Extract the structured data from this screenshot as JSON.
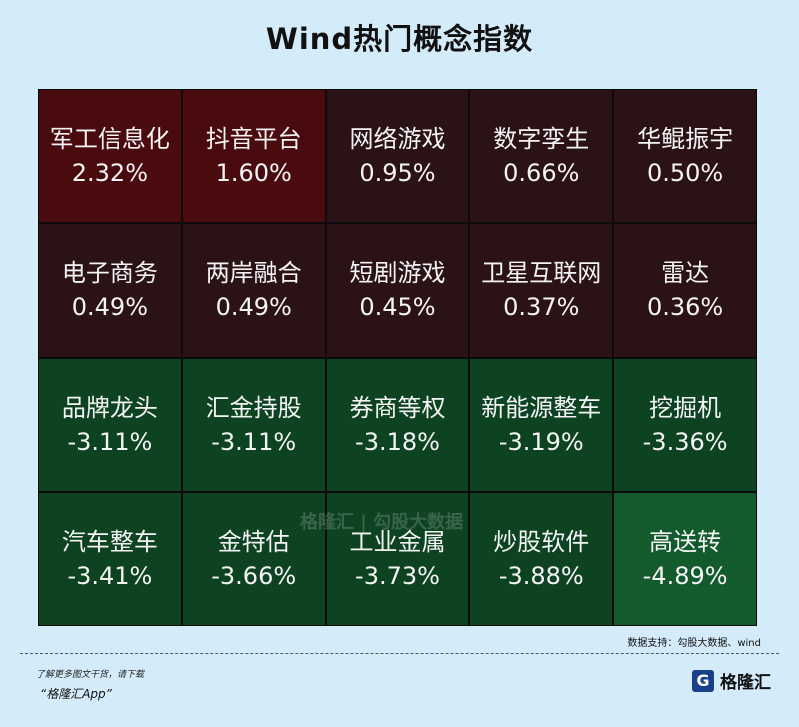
{
  "title": "Wind热门概念指数",
  "source": "数据支持：勾股大数据、wind",
  "footer": {
    "note": "了解更多图文干货，请下载",
    "app": "“格隆汇App”",
    "logo_text": "格隆汇",
    "logo_mark": "G"
  },
  "watermark": "格隆汇 | 勾股大数据",
  "colors": {
    "red_strong": "#4a0b0f",
    "red_weak": "#2a1217",
    "green_weak": "#0d4321",
    "green_strong": "#135a2c"
  },
  "chart_data": {
    "type": "heatmap",
    "unit": "%",
    "cells": [
      {
        "name": "军工信息化",
        "value": 2.32,
        "label": "2.32%"
      },
      {
        "name": "抖音平台",
        "value": 1.6,
        "label": "1.60%"
      },
      {
        "name": "网络游戏",
        "value": 0.95,
        "label": "0.95%"
      },
      {
        "name": "数字孪生",
        "value": 0.66,
        "label": "0.66%"
      },
      {
        "name": "华鲲振宇",
        "value": 0.5,
        "label": "0.50%"
      },
      {
        "name": "电子商务",
        "value": 0.49,
        "label": "0.49%"
      },
      {
        "name": "两岸融合",
        "value": 0.49,
        "label": "0.49%"
      },
      {
        "name": "短剧游戏",
        "value": 0.45,
        "label": "0.45%"
      },
      {
        "name": "卫星互联网",
        "value": 0.37,
        "label": "0.37%"
      },
      {
        "name": "雷达",
        "value": 0.36,
        "label": "0.36%"
      },
      {
        "name": "品牌龙头",
        "value": -3.11,
        "label": "-3.11%"
      },
      {
        "name": "汇金持股",
        "value": -3.11,
        "label": "-3.11%"
      },
      {
        "name": "券商等权",
        "value": -3.18,
        "label": "-3.18%"
      },
      {
        "name": "新能源整车",
        "value": -3.19,
        "label": "-3.19%"
      },
      {
        "name": "挖掘机",
        "value": -3.36,
        "label": "-3.36%"
      },
      {
        "name": "汽车整车",
        "value": -3.41,
        "label": "-3.41%"
      },
      {
        "name": "金特估",
        "value": -3.66,
        "label": "-3.66%"
      },
      {
        "name": "工业金属",
        "value": -3.73,
        "label": "-3.73%"
      },
      {
        "name": "炒股软件",
        "value": -3.88,
        "label": "-3.88%"
      },
      {
        "name": "高送转",
        "value": -4.89,
        "label": "-4.89%"
      }
    ]
  }
}
